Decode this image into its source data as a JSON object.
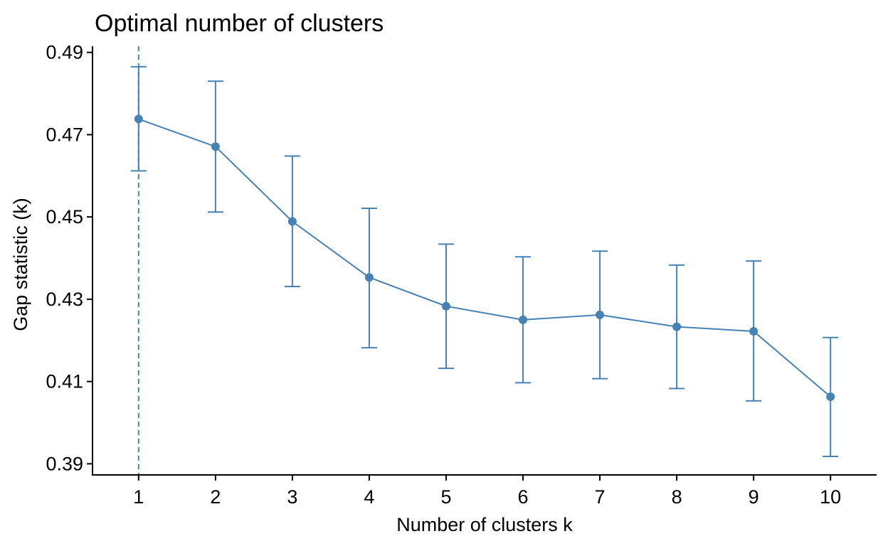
{
  "chart_data": {
    "type": "line",
    "title": "Optimal number of clusters",
    "xlabel": "Number of clusters k",
    "ylabel": "Gap statistic (k)",
    "x": [
      1,
      2,
      3,
      4,
      5,
      6,
      7,
      8,
      9,
      10
    ],
    "x_tick_labels": [
      "1",
      "2",
      "3",
      "4",
      "5",
      "6",
      "7",
      "8",
      "9",
      "10"
    ],
    "y_ticks": [
      0.39,
      0.41,
      0.43,
      0.45,
      0.47,
      0.49
    ],
    "y_tick_labels": [
      "0.39",
      "0.41",
      "0.43",
      "0.45",
      "0.47",
      "0.49"
    ],
    "ylim": [
      0.3873,
      0.4915
    ],
    "xlim": [
      0.4,
      10.6
    ],
    "series": [
      {
        "values": [
          0.4738,
          0.4671,
          0.4489,
          0.4353,
          0.4283,
          0.425,
          0.4262,
          0.4233,
          0.4222,
          0.4063
        ],
        "error_lower": [
          0.4612,
          0.4512,
          0.4331,
          0.4182,
          0.4132,
          0.4097,
          0.4107,
          0.4083,
          0.4053,
          0.3918
        ],
        "error_upper": [
          0.4865,
          0.483,
          0.4648,
          0.4521,
          0.4434,
          0.4403,
          0.4417,
          0.4383,
          0.4393,
          0.4207
        ],
        "color": "#4682B4"
      }
    ],
    "optimal_k": 1,
    "grid": false,
    "legend": "none"
  }
}
